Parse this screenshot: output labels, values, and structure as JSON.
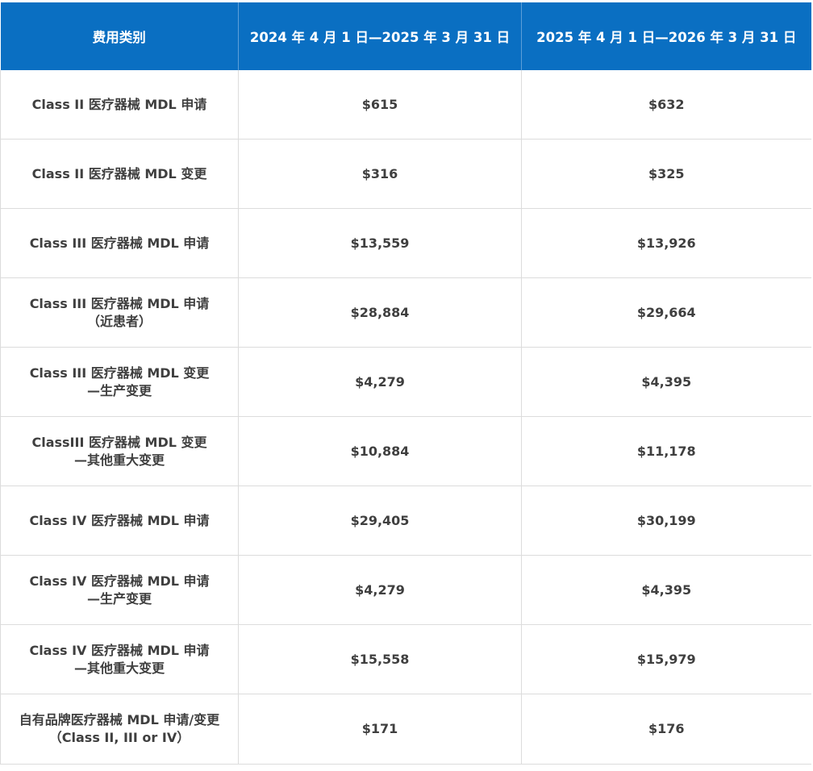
{
  "header": {
    "category": "费用类别",
    "period1": "2024 年 4 月 1 日—2025 年 3 月 31 日",
    "period2": "2025 年 4 月 1 日—2026 年 3 月 31 日"
  },
  "rows": [
    {
      "category": [
        "Class II 医疗器械 MDL 申请"
      ],
      "fee1": "$615",
      "fee2": "$632"
    },
    {
      "category": [
        "Class II 医疗器械 MDL 变更"
      ],
      "fee1": "$316",
      "fee2": "$325"
    },
    {
      "category": [
        "Class III 医疗器械 MDL 申请"
      ],
      "fee1": "$13,559",
      "fee2": "$13,926"
    },
    {
      "category": [
        "Class III 医疗器械 MDL 申请",
        "（近患者）"
      ],
      "fee1": "$28,884",
      "fee2": "$29,664"
    },
    {
      "category": [
        "Class III 医疗器械 MDL 变更",
        "—生产变更"
      ],
      "fee1": "$4,279",
      "fee2": "$4,395"
    },
    {
      "category": [
        "ClassIII 医疗器械 MDL 变更",
        "—其他重大变更"
      ],
      "fee1": "$10,884",
      "fee2": "$11,178"
    },
    {
      "category": [
        "Class IV 医疗器械 MDL 申请"
      ],
      "fee1": "$29,405",
      "fee2": "$30,199"
    },
    {
      "category": [
        "Class IV 医疗器械 MDL 申请",
        "—生产变更"
      ],
      "fee1": "$4,279",
      "fee2": "$4,395"
    },
    {
      "category": [
        "Class IV 医疗器械 MDL 申请",
        "—其他重大变更"
      ],
      "fee1": "$15,558",
      "fee2": "$15,979"
    },
    {
      "category": [
        "自有品牌医疗器械 MDL 申请/变更",
        "（Class II, III or IV）"
      ],
      "fee1": "$171",
      "fee2": "$176"
    }
  ]
}
